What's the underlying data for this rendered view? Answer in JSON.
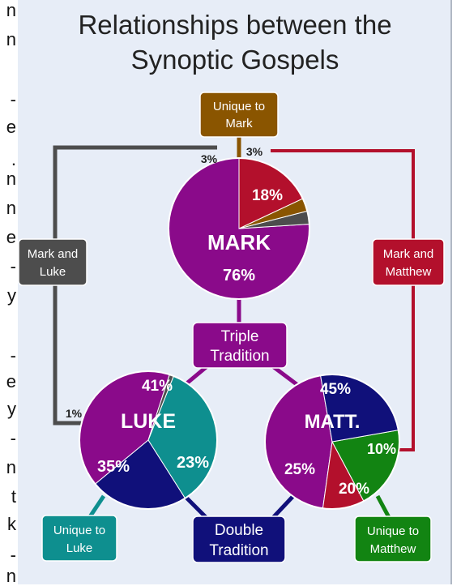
{
  "title": {
    "line1": "Relationships between the",
    "line2": "Synoptic Gospels"
  },
  "left_edge_letters": [
    "n",
    "n",
    "-",
    "e",
    ".",
    "n",
    "n",
    "e",
    "-",
    "y",
    "-",
    "e",
    "y",
    "-",
    "n",
    "t",
    "k",
    "-",
    "n"
  ],
  "colors": {
    "panel": "#e7edf7",
    "mark_purple": "#8a0a8a",
    "unique_mark": "#8a5500",
    "mark_matthew": "#b3102c",
    "mark_luke": "#4d4d4d",
    "unique_luke": "#0e8f8f",
    "double": "#10107a",
    "unique_matthew": "#128412",
    "matt_red": "#b3102c"
  },
  "boxes": {
    "unique_mark": [
      "Unique to",
      "Mark"
    ],
    "mark_luke": [
      "Mark and",
      "Luke"
    ],
    "mark_matthew": [
      "Mark and",
      "Matthew"
    ],
    "triple": [
      "Triple",
      "Tradition"
    ],
    "unique_luke": [
      "Unique to",
      "Luke"
    ],
    "double": [
      "Double",
      "Tradition"
    ],
    "unique_matthew": [
      "Unique to",
      "Matthew"
    ]
  },
  "chart_data": [
    {
      "type": "pie",
      "name": "MARK",
      "slices": [
        {
          "label": "Triple Tradition",
          "value": 76,
          "text": "76%"
        },
        {
          "label": "Mark and Luke",
          "value": 3,
          "text": "3%"
        },
        {
          "label": "Unique to Mark",
          "value": 3,
          "text": "3%"
        },
        {
          "label": "Mark and Matthew",
          "value": 18,
          "text": "18%"
        }
      ]
    },
    {
      "type": "pie",
      "name": "LUKE",
      "slices": [
        {
          "label": "Triple Tradition",
          "value": 41,
          "text": "41%"
        },
        {
          "label": "Double Tradition",
          "value": 23,
          "text": "23%"
        },
        {
          "label": "Unique to Luke",
          "value": 35,
          "text": "35%"
        },
        {
          "label": "Mark and Luke",
          "value": 1,
          "text": "1%"
        }
      ]
    },
    {
      "type": "pie",
      "name": "MATT.",
      "slices": [
        {
          "label": "Triple Tradition",
          "value": 45,
          "text": "45%"
        },
        {
          "label": "Mark and Matthew",
          "value": 10,
          "text": "10%"
        },
        {
          "label": "Unique to Matthew",
          "value": 20,
          "text": "20%"
        },
        {
          "label": "Double Tradition",
          "value": 25,
          "text": "25%"
        }
      ]
    }
  ]
}
